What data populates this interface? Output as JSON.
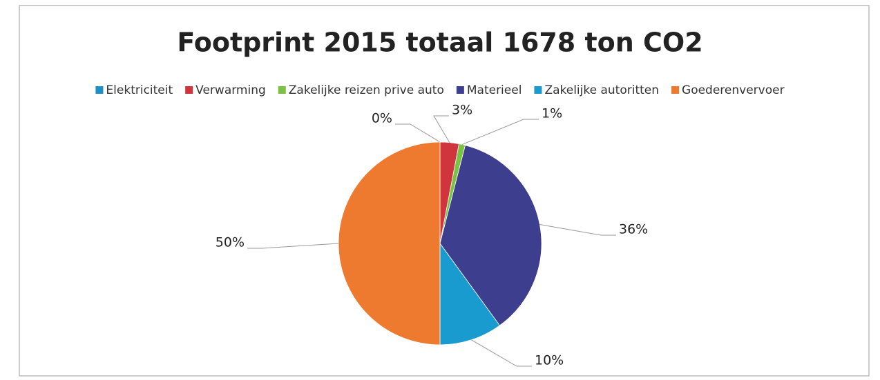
{
  "chart_data": {
    "type": "pie",
    "title": "Footprint 2015 totaal 1678 ton CO2",
    "categories": [
      "Elektriciteit",
      "Verwarming",
      "Zakelijke reizen prive auto",
      "Materieel",
      "Zakelijke autoritten",
      "Goederenvervoer"
    ],
    "values": [
      0,
      3,
      1,
      36,
      10,
      50
    ],
    "value_labels": [
      "0%",
      "3%",
      "1%",
      "36%",
      "10%",
      "50%"
    ],
    "colors": [
      "#1f8fc4",
      "#d0343c",
      "#7cc242",
      "#3e3e8e",
      "#1a9bd0",
      "#ee7a30"
    ],
    "legend": "top"
  }
}
